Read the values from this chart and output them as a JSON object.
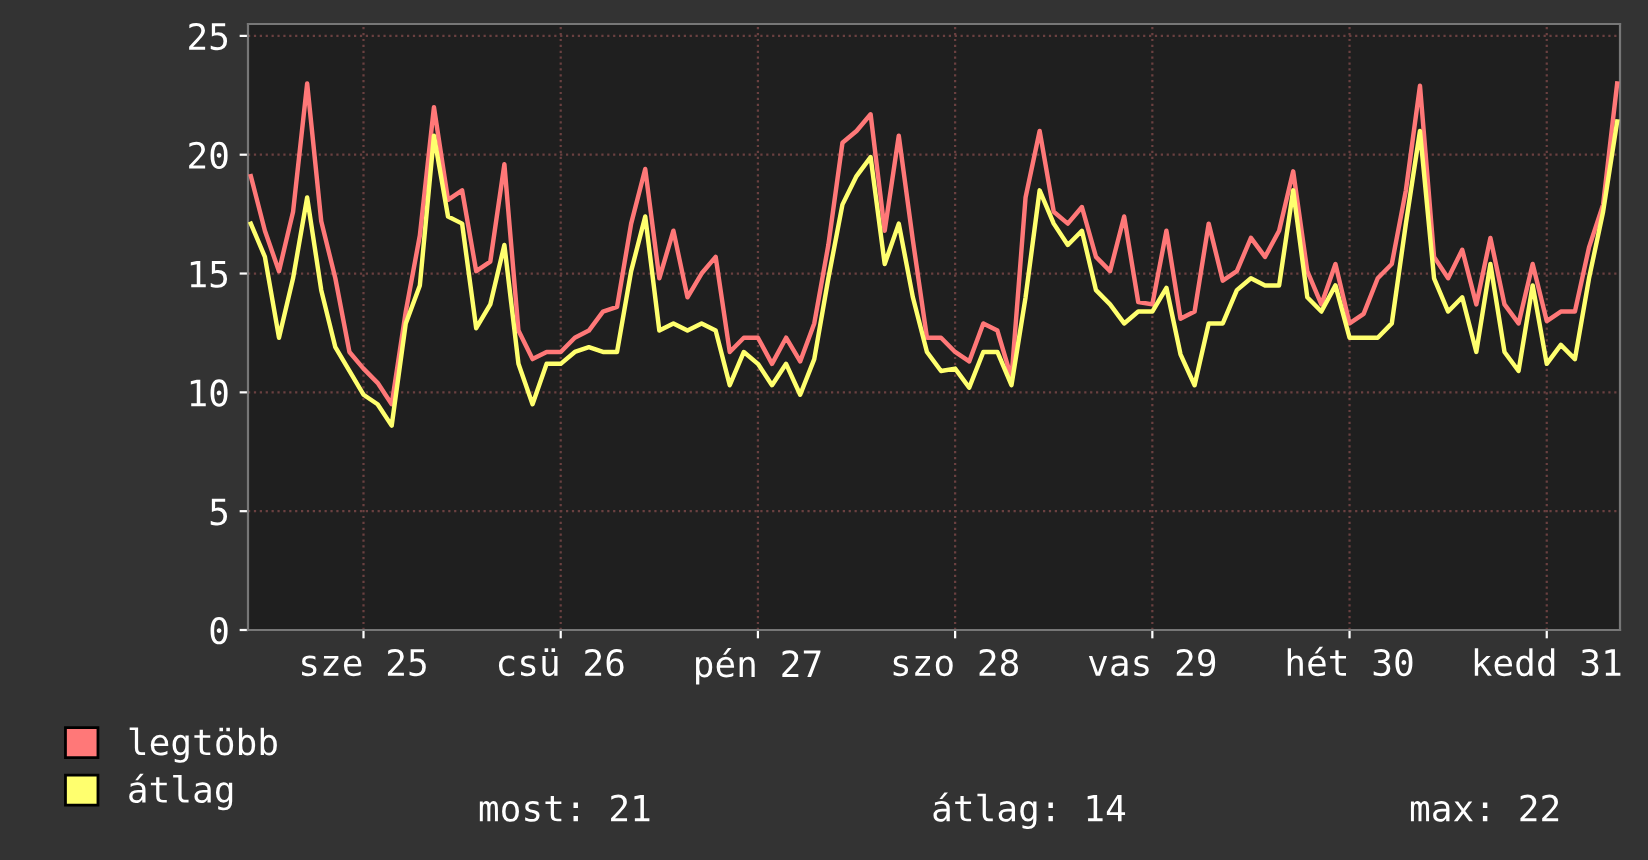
{
  "chart_data": {
    "type": "line",
    "categories": [
      null,
      null,
      null,
      null,
      null,
      null,
      null,
      null,
      "sze 25",
      null,
      null,
      null,
      null,
      null,
      null,
      null,
      null,
      null,
      null,
      null,
      null,
      null,
      "csü 26",
      null,
      null,
      null,
      null,
      null,
      null,
      null,
      null,
      null,
      null,
      null,
      null,
      null,
      "pén 27",
      null,
      null,
      null,
      null,
      null,
      null,
      null,
      null,
      null,
      null,
      null,
      null,
      null,
      "szo 28",
      null,
      null,
      null,
      null,
      null,
      null,
      null,
      null,
      null,
      null,
      null,
      null,
      null,
      "vas 29",
      null,
      null,
      null,
      null,
      null,
      null,
      null,
      null,
      null,
      null,
      null,
      null,
      null,
      "hét 30",
      null,
      null,
      null,
      null,
      null,
      null,
      null,
      null,
      null,
      null,
      null,
      null,
      null,
      "kedd 31",
      null,
      null,
      null,
      null,
      null
    ],
    "series": [
      {
        "name": "legtöbb",
        "color": "#ff7878",
        "values": [
          19.1,
          16.8,
          15.1,
          17.6,
          23.0,
          17.2,
          14.8,
          11.7,
          11.0,
          10.4,
          9.5,
          13.4,
          16.6,
          22.0,
          18.1,
          18.5,
          15.1,
          15.5,
          19.6,
          12.6,
          11.4,
          11.7,
          11.7,
          12.3,
          12.6,
          13.4,
          13.6,
          17.1,
          19.4,
          14.8,
          16.8,
          14.0,
          15.0,
          15.7,
          11.7,
          12.3,
          12.3,
          11.2,
          12.3,
          11.3,
          12.9,
          16.2,
          20.5,
          21.0,
          21.7,
          16.8,
          20.8,
          16.4,
          12.3,
          12.3,
          11.7,
          11.3,
          12.9,
          12.6,
          10.6,
          18.2,
          21.0,
          17.6,
          17.1,
          17.8,
          15.7,
          15.1,
          17.4,
          13.8,
          13.7,
          16.8,
          13.1,
          13.4,
          17.1,
          14.7,
          15.1,
          16.5,
          15.7,
          16.8,
          19.3,
          15.1,
          13.7,
          15.4,
          12.9,
          13.3,
          14.8,
          15.4,
          18.5,
          22.9,
          15.7,
          14.8,
          16.0,
          13.7,
          16.5,
          13.7,
          12.9,
          15.4,
          13.0,
          13.4,
          13.4,
          16.1,
          17.9,
          23.0
        ]
      },
      {
        "name": "átlag",
        "color": "#ffff6e",
        "values": [
          17.1,
          15.7,
          12.3,
          14.8,
          18.2,
          14.3,
          11.9,
          10.9,
          9.9,
          9.5,
          8.6,
          12.9,
          14.5,
          20.8,
          17.4,
          17.1,
          12.7,
          13.7,
          16.2,
          11.2,
          9.5,
          11.2,
          11.2,
          11.7,
          11.9,
          11.7,
          11.7,
          15.1,
          17.4,
          12.6,
          12.9,
          12.6,
          12.9,
          12.6,
          10.3,
          11.7,
          11.2,
          10.3,
          11.2,
          9.9,
          11.4,
          14.8,
          17.9,
          19.1,
          19.9,
          15.4,
          17.1,
          14.0,
          11.7,
          10.9,
          11.0,
          10.2,
          11.7,
          11.7,
          10.3,
          14.0,
          18.5,
          17.1,
          16.2,
          16.8,
          14.3,
          13.7,
          12.9,
          13.4,
          13.4,
          14.4,
          11.6,
          10.3,
          12.9,
          12.9,
          14.3,
          14.8,
          14.5,
          14.5,
          18.5,
          14.0,
          13.4,
          14.5,
          12.3,
          12.3,
          12.3,
          12.9,
          17.1,
          21.0,
          14.8,
          13.4,
          14.0,
          11.7,
          15.4,
          11.7,
          10.9,
          14.5,
          11.2,
          12.0,
          11.4,
          14.8,
          17.6,
          21.4
        ]
      }
    ],
    "ylim": [
      0,
      25.5
    ],
    "yticks": [
      0,
      5,
      10,
      15,
      20,
      25
    ],
    "grid": true,
    "legend": "bottom left",
    "line_style": "solid",
    "annotations": [
      "most: 21",
      "átlag: 14",
      "max: 22"
    ]
  }
}
